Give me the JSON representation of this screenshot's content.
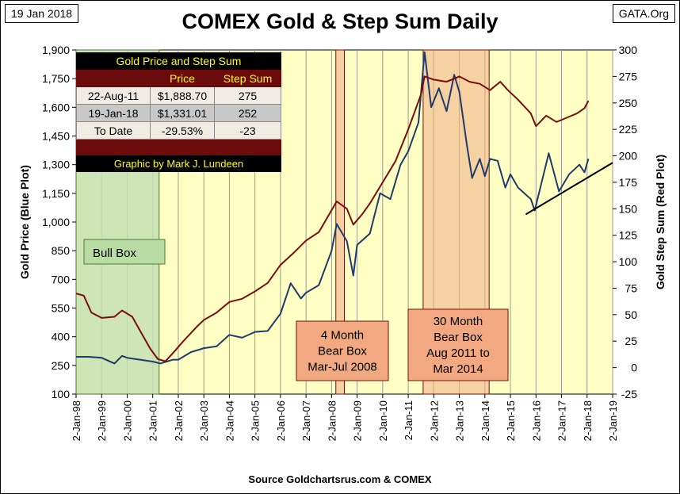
{
  "header": {
    "date_badge": "19 Jan 2018",
    "site_badge": "GATA.Org",
    "title": "COMEX Gold & Step Sum Daily"
  },
  "footer": {
    "source": "Source Goldchartsrus.com & COMEX"
  },
  "colors": {
    "plot_bg": "#ffffc4",
    "gold_line": "#1f3a6b",
    "step_sum_line": "#7a0d0d",
    "bull_box": "#c5e0b4",
    "bear_box": "#f0b38a",
    "table_dark": "#6b0b0b",
    "table_text": "#ffff00"
  },
  "info_table": {
    "title": "Gold Price and Step Sum",
    "col_price": "Price",
    "col_step": "Step Sum",
    "rows": [
      {
        "label": "22-Aug-11",
        "price": "$1,888.70",
        "step": "275"
      },
      {
        "label": "19-Jan-18",
        "price": "$1,331.01",
        "step": "252"
      },
      {
        "label": "To Date",
        "price": "-29.53%",
        "step": "-23"
      }
    ],
    "credit": "Graphic by Mark J. Lundeen"
  },
  "boxes": {
    "bull": {
      "label": "Bull Box",
      "from": "Jan-98",
      "to": "Apr-01"
    },
    "bear_2008": {
      "lines": [
        "4 Month",
        "Bear Box",
        "Mar-Jul 2008"
      ],
      "from": "Mar-08",
      "to": "Jul-08"
    },
    "bear_2011": {
      "lines": [
        "30 Month",
        "Bear Box",
        "Aug 2011 to",
        "Mar 2014"
      ],
      "from": "Aug-11",
      "to": "Mar-14"
    }
  },
  "chart_data": {
    "type": "line",
    "title": "COMEX Gold & Step Sum Daily",
    "x_ticks": [
      "2-Jan-98",
      "2-Jan-99",
      "2-Jan-00",
      "2-Jan-01",
      "2-Jan-02",
      "2-Jan-03",
      "2-Jan-04",
      "2-Jan-05",
      "2-Jan-06",
      "2-Jan-07",
      "2-Jan-08",
      "2-Jan-09",
      "2-Jan-10",
      "2-Jan-11",
      "2-Jan-12",
      "2-Jan-13",
      "2-Jan-14",
      "2-Jan-15",
      "2-Jan-16",
      "2-Jan-17",
      "2-Jan-18",
      "2-Jan-19"
    ],
    "xlim": [
      1998,
      2019
    ],
    "y_left": {
      "label": "Gold Price",
      "label_suffix": "(Blue Plot)",
      "lim": [
        100,
        1900
      ],
      "ticks": [
        "100",
        "250",
        "400",
        "550",
        "700",
        "850",
        "1,000",
        "1,150",
        "1,300",
        "1,450",
        "1,600",
        "1,750",
        "1,900"
      ]
    },
    "y_right": {
      "label": "Gold Step Sum",
      "label_suffix": "(Red Plot)",
      "lim": [
        -25,
        300
      ],
      "ticks": [
        "-25",
        "0",
        "25",
        "50",
        "75",
        "100",
        "125",
        "150",
        "175",
        "200",
        "225",
        "250",
        "275",
        "300"
      ]
    },
    "grid": "vertical",
    "series": [
      {
        "axis": "left",
        "points": [
          [
            1998.0,
            295
          ],
          [
            1998.5,
            295
          ],
          [
            1999.0,
            290
          ],
          [
            1999.5,
            260
          ],
          [
            1999.8,
            300
          ],
          [
            2000.0,
            290
          ],
          [
            2000.5,
            280
          ],
          [
            2001.0,
            270
          ],
          [
            2001.3,
            260
          ],
          [
            2001.8,
            280
          ],
          [
            2002.0,
            280
          ],
          [
            2002.5,
            320
          ],
          [
            2003.0,
            340
          ],
          [
            2003.5,
            350
          ],
          [
            2004.0,
            410
          ],
          [
            2004.5,
            395
          ],
          [
            2005.0,
            425
          ],
          [
            2005.5,
            430
          ],
          [
            2006.0,
            520
          ],
          [
            2006.4,
            680
          ],
          [
            2006.8,
            600
          ],
          [
            2007.0,
            630
          ],
          [
            2007.5,
            670
          ],
          [
            2008.0,
            850
          ],
          [
            2008.2,
            990
          ],
          [
            2008.6,
            900
          ],
          [
            2008.85,
            720
          ],
          [
            2009.0,
            880
          ],
          [
            2009.5,
            940
          ],
          [
            2009.9,
            1150
          ],
          [
            2010.3,
            1120
          ],
          [
            2010.7,
            1300
          ],
          [
            2011.0,
            1370
          ],
          [
            2011.4,
            1520
          ],
          [
            2011.64,
            1889
          ],
          [
            2011.9,
            1600
          ],
          [
            2012.2,
            1700
          ],
          [
            2012.5,
            1580
          ],
          [
            2012.8,
            1770
          ],
          [
            2013.0,
            1680
          ],
          [
            2013.3,
            1400
          ],
          [
            2013.5,
            1230
          ],
          [
            2013.8,
            1330
          ],
          [
            2014.0,
            1240
          ],
          [
            2014.2,
            1330
          ],
          [
            2014.5,
            1320
          ],
          [
            2014.8,
            1180
          ],
          [
            2015.0,
            1250
          ],
          [
            2015.3,
            1180
          ],
          [
            2015.8,
            1120
          ],
          [
            2015.95,
            1060
          ],
          [
            2016.5,
            1360
          ],
          [
            2016.9,
            1160
          ],
          [
            2017.3,
            1250
          ],
          [
            2017.7,
            1300
          ],
          [
            2017.9,
            1260
          ],
          [
            2018.05,
            1331
          ]
        ]
      },
      {
        "axis": "right",
        "points": [
          [
            1998.0,
            70
          ],
          [
            1998.3,
            68
          ],
          [
            1998.6,
            52
          ],
          [
            1999.0,
            47
          ],
          [
            1999.5,
            48
          ],
          [
            1999.8,
            54
          ],
          [
            2000.2,
            48
          ],
          [
            2000.5,
            35
          ],
          [
            2000.9,
            18
          ],
          [
            2001.2,
            8
          ],
          [
            2001.5,
            6
          ],
          [
            2001.8,
            14
          ],
          [
            2002.2,
            25
          ],
          [
            2002.7,
            38
          ],
          [
            2003.0,
            45
          ],
          [
            2003.5,
            52
          ],
          [
            2004.0,
            62
          ],
          [
            2004.5,
            65
          ],
          [
            2005.0,
            72
          ],
          [
            2005.5,
            80
          ],
          [
            2006.0,
            97
          ],
          [
            2006.5,
            108
          ],
          [
            2007.0,
            120
          ],
          [
            2007.5,
            128
          ],
          [
            2008.2,
            157
          ],
          [
            2008.6,
            150
          ],
          [
            2008.85,
            135
          ],
          [
            2009.2,
            145
          ],
          [
            2009.5,
            155
          ],
          [
            2010.0,
            175
          ],
          [
            2010.5,
            195
          ],
          [
            2011.0,
            225
          ],
          [
            2011.5,
            258
          ],
          [
            2011.64,
            275
          ],
          [
            2012.0,
            272
          ],
          [
            2012.5,
            270
          ],
          [
            2013.0,
            275
          ],
          [
            2013.4,
            270
          ],
          [
            2013.8,
            268
          ],
          [
            2014.2,
            262
          ],
          [
            2014.6,
            270
          ],
          [
            2014.9,
            262
          ],
          [
            2015.3,
            253
          ],
          [
            2015.8,
            240
          ],
          [
            2016.0,
            228
          ],
          [
            2016.4,
            238
          ],
          [
            2016.8,
            232
          ],
          [
            2017.2,
            236
          ],
          [
            2017.6,
            240
          ],
          [
            2017.9,
            245
          ],
          [
            2018.05,
            252
          ]
        ]
      }
    ],
    "trendline": {
      "axis": "left",
      "from": [
        2015.6,
        1040
      ],
      "to": [
        2019.0,
        1310
      ]
    }
  }
}
